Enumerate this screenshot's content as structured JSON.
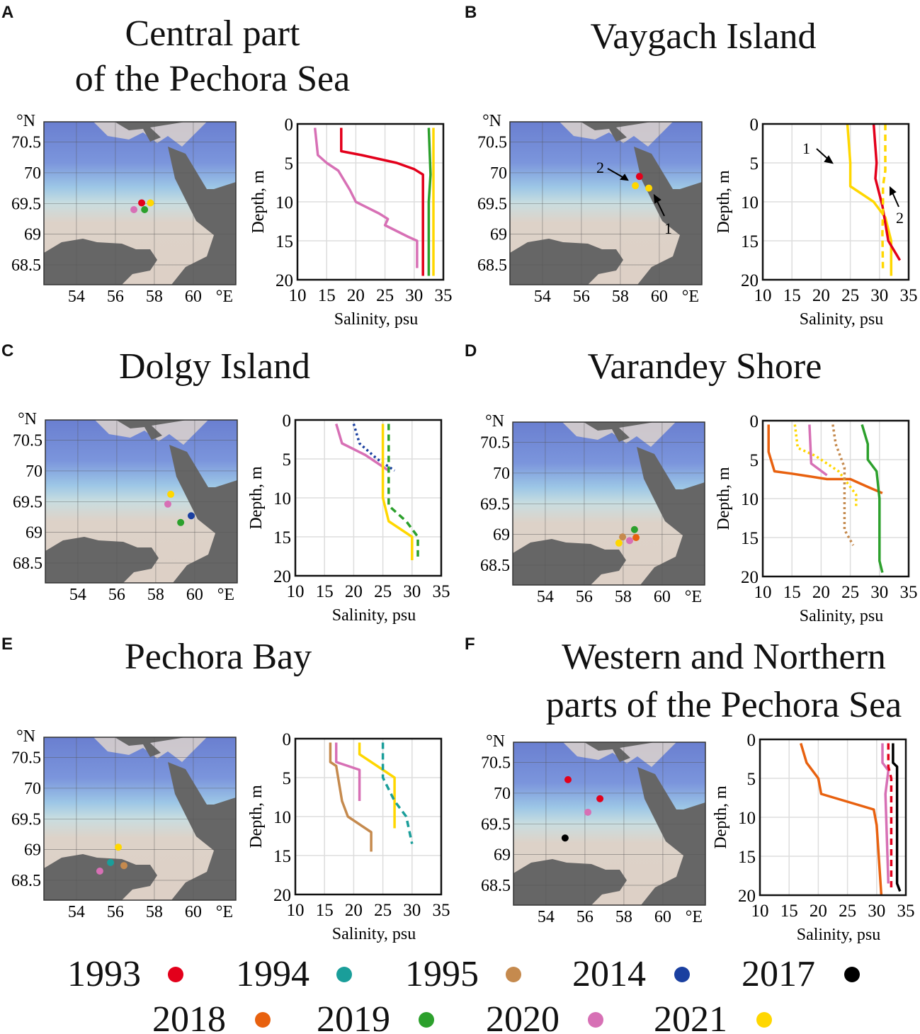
{
  "colors": {
    "1993": "#e3001b",
    "1994": "#1a9e9a",
    "1995": "#c58a4e",
    "2014": "#1a3fa0",
    "2017": "#000000",
    "2018": "#e8610f",
    "2019": "#2ca02c",
    "2020": "#d770b5",
    "2021": "#ffd700"
  },
  "map_axes": {
    "lon_ticks": [
      "54",
      "56",
      "58",
      "60"
    ],
    "lat_ticks": [
      "70.5",
      "70",
      "69.5",
      "69",
      "68.5"
    ],
    "lon_unit": "°E",
    "lat_unit": "°N"
  },
  "chart_data": [
    {
      "type": "line",
      "panel": "A",
      "title_lines": [
        "Central part",
        "of the Pechora Sea"
      ],
      "xlabel": "Salinity, psu",
      "ylabel": "Depth, m",
      "xlim": [
        10,
        35
      ],
      "ylim": [
        0,
        20
      ],
      "xticks": [
        "10",
        "15",
        "20",
        "25",
        "30",
        "35"
      ],
      "yticks": [
        "0",
        "5",
        "10",
        "15",
        "20"
      ],
      "stations": [
        {
          "year": "1993",
          "lon": 57.35,
          "lat": 69.51
        },
        {
          "year": "2021",
          "lon": 57.8,
          "lat": 69.51
        },
        {
          "year": "2020",
          "lon": 56.95,
          "lat": 69.4
        },
        {
          "year": "2019",
          "lon": 57.5,
          "lat": 69.4
        }
      ],
      "series": [
        {
          "year": "2020",
          "style": "solid",
          "points": [
            [
              13,
              0.5
            ],
            [
              13.5,
              4
            ],
            [
              15,
              5
            ],
            [
              17,
              6
            ],
            [
              19,
              8.5
            ],
            [
              20,
              10
            ],
            [
              24,
              11.5
            ],
            [
              25.5,
              12.2
            ],
            [
              25,
              13
            ],
            [
              29,
              14.5
            ],
            [
              30.5,
              15
            ],
            [
              30.5,
              18.5
            ]
          ]
        },
        {
          "year": "1993",
          "style": "solid",
          "points": [
            [
              17.5,
              0.5
            ],
            [
              17.5,
              3.5
            ],
            [
              21,
              4
            ],
            [
              27,
              5
            ],
            [
              30,
              5.8
            ],
            [
              31.5,
              6.5
            ],
            [
              31.5,
              19.5
            ]
          ]
        },
        {
          "year": "2019",
          "style": "solid",
          "points": [
            [
              32.5,
              0.5
            ],
            [
              32.8,
              6.5
            ],
            [
              32.5,
              10
            ],
            [
              32.5,
              19.5
            ]
          ]
        },
        {
          "year": "2021",
          "style": "solid",
          "points": [
            [
              33.3,
              0.5
            ],
            [
              33.3,
              19.5
            ]
          ]
        }
      ]
    },
    {
      "type": "line",
      "panel": "B",
      "title_lines": [
        "Vaygach Island"
      ],
      "xlabel": "Salinity, psu",
      "ylabel": "Depth, m",
      "xlim": [
        10,
        35
      ],
      "ylim": [
        0,
        20
      ],
      "xticks": [
        "10",
        "15",
        "20",
        "25",
        "30",
        "35"
      ],
      "yticks": [
        "0",
        "5",
        "10",
        "15",
        "20"
      ],
      "stations": [
        {
          "year": "1993",
          "lon": 58.98,
          "lat": 69.94
        },
        {
          "year": "2021",
          "lon": 59.46,
          "lat": 69.75
        },
        {
          "year": "2021",
          "lon": 58.77,
          "lat": 69.79
        }
      ],
      "map_annotations": [
        "2",
        "1"
      ],
      "chart_annotations": [
        "1",
        "2"
      ],
      "series": [
        {
          "year": "2021",
          "style": "solid",
          "points": [
            [
              24.5,
              0
            ],
            [
              25,
              5
            ],
            [
              25,
              8
            ],
            [
              29,
              10
            ],
            [
              31,
              12
            ],
            [
              32,
              15
            ],
            [
              32,
              19.5
            ]
          ]
        },
        {
          "year": "1993",
          "style": "solid",
          "points": [
            [
              29,
              0
            ],
            [
              29.2,
              2
            ],
            [
              29.5,
              5
            ],
            [
              29.3,
              7
            ],
            [
              30.5,
              10.5
            ],
            [
              31.5,
              15
            ],
            [
              33.5,
              17.5
            ]
          ]
        },
        {
          "year": "2021",
          "style": "dashed",
          "points": [
            [
              31,
              0
            ],
            [
              31,
              6
            ],
            [
              30.6,
              8
            ],
            [
              30.6,
              11
            ],
            [
              30.5,
              14
            ],
            [
              30.6,
              19
            ]
          ]
        }
      ]
    },
    {
      "type": "line",
      "panel": "C",
      "title_lines": [
        "Dolgy Island"
      ],
      "xlabel": "Salinity, psu",
      "ylabel": "Depth, m",
      "xlim": [
        10,
        35
      ],
      "ylim": [
        0,
        20
      ],
      "xticks": [
        "10",
        "15",
        "20",
        "25",
        "30",
        "35"
      ],
      "yticks": [
        "0",
        "5",
        "10",
        "15",
        "20"
      ],
      "stations": [
        {
          "year": "2021",
          "lon": 58.77,
          "lat": 69.62
        },
        {
          "year": "2020",
          "lon": 58.62,
          "lat": 69.46
        },
        {
          "year": "2014",
          "lon": 59.82,
          "lat": 69.27
        },
        {
          "year": "2019",
          "lon": 59.28,
          "lat": 69.16
        }
      ],
      "series": [
        {
          "year": "2020",
          "style": "solid",
          "points": [
            [
              17,
              0.5
            ],
            [
              18,
              3
            ],
            [
              22,
              4.5
            ],
            [
              26,
              6.5
            ]
          ]
        },
        {
          "year": "2014",
          "style": "dotted",
          "points": [
            [
              20,
              0.5
            ],
            [
              21,
              3
            ],
            [
              24,
              5
            ],
            [
              27,
              6.5
            ]
          ]
        },
        {
          "year": "2019",
          "style": "dashed",
          "points": [
            [
              26,
              0.5
            ],
            [
              26,
              5
            ],
            [
              26,
              11
            ],
            [
              29,
              13
            ],
            [
              31,
              15
            ],
            [
              31,
              18
            ]
          ]
        },
        {
          "year": "2021",
          "style": "solid",
          "points": [
            [
              25,
              0.5
            ],
            [
              25,
              5
            ],
            [
              25,
              10
            ],
            [
              26,
              13
            ],
            [
              30,
              15
            ],
            [
              30,
              18
            ]
          ]
        }
      ]
    },
    {
      "type": "line",
      "panel": "D",
      "title_lines": [
        "Varandey Shore"
      ],
      "xlabel": "Salinity, psu",
      "ylabel": "Depth, m",
      "xlim": [
        10,
        35
      ],
      "ylim": [
        0,
        20
      ],
      "xticks": [
        "10",
        "15",
        "20",
        "25",
        "30",
        "35"
      ],
      "yticks": [
        "0",
        "5",
        "10",
        "15",
        "20"
      ],
      "stations": [
        {
          "year": "2019",
          "lon": 58.58,
          "lat": 69.08
        },
        {
          "year": "1995",
          "lon": 57.97,
          "lat": 68.96
        },
        {
          "year": "2018",
          "lon": 58.66,
          "lat": 68.95
        },
        {
          "year": "2020",
          "lon": 58.33,
          "lat": 68.9
        },
        {
          "year": "2021",
          "lon": 57.78,
          "lat": 68.86
        }
      ],
      "series": [
        {
          "year": "2018",
          "style": "solid",
          "points": [
            [
              11,
              0.5
            ],
            [
              11,
              4
            ],
            [
              12,
              6.5
            ],
            [
              15,
              6.8
            ],
            [
              21,
              7.5
            ],
            [
              25,
              7.5
            ],
            [
              28,
              8.5
            ],
            [
              30.5,
              9.3
            ]
          ]
        },
        {
          "year": "2021",
          "style": "dotted",
          "points": [
            [
              15.5,
              0.5
            ],
            [
              16,
              3.5
            ],
            [
              19,
              4.5
            ],
            [
              23,
              6.5
            ],
            [
              26,
              9.5
            ],
            [
              26,
              11
            ]
          ]
        },
        {
          "year": "2020",
          "style": "solid",
          "points": [
            [
              18,
              0.5
            ],
            [
              18.3,
              5.5
            ],
            [
              21,
              7
            ]
          ]
        },
        {
          "year": "1995",
          "style": "dotted",
          "points": [
            [
              22,
              0.5
            ],
            [
              22.5,
              3
            ],
            [
              24,
              6
            ],
            [
              24,
              8
            ],
            [
              24,
              14
            ],
            [
              25.5,
              16
            ]
          ]
        },
        {
          "year": "2019",
          "style": "solid",
          "points": [
            [
              27,
              0.5
            ],
            [
              28,
              3
            ],
            [
              28,
              5
            ],
            [
              29.5,
              6.5
            ],
            [
              30,
              10
            ],
            [
              30,
              18
            ],
            [
              30.5,
              19.5
            ]
          ]
        }
      ]
    },
    {
      "type": "line",
      "panel": "E",
      "title_lines": [
        "Pechora Bay"
      ],
      "xlabel": "Salinity, psu",
      "ylabel": "Depth, m",
      "xlim": [
        10,
        35
      ],
      "ylim": [
        0,
        20
      ],
      "xticks": [
        "10",
        "15",
        "20",
        "25",
        "30",
        "35"
      ],
      "yticks": [
        "0",
        "5",
        "10",
        "15",
        "20"
      ],
      "stations": [
        {
          "year": "2021",
          "lon": 56.15,
          "lat": 69.04
        },
        {
          "year": "1994",
          "lon": 55.75,
          "lat": 68.79
        },
        {
          "year": "1995",
          "lon": 56.44,
          "lat": 68.74
        },
        {
          "year": "2020",
          "lon": 55.2,
          "lat": 68.65
        }
      ],
      "series": [
        {
          "year": "1995",
          "style": "solid",
          "points": [
            [
              16,
              0.5
            ],
            [
              16,
              3
            ],
            [
              17,
              3.5
            ],
            [
              18,
              8
            ],
            [
              19,
              10
            ],
            [
              23,
              12
            ],
            [
              23,
              14.5
            ]
          ]
        },
        {
          "year": "2020",
          "style": "solid",
          "points": [
            [
              17,
              0.5
            ],
            [
              17,
              3
            ],
            [
              21,
              4
            ],
            [
              21,
              8
            ]
          ]
        },
        {
          "year": "2021",
          "style": "solid",
          "points": [
            [
              21,
              0.5
            ],
            [
              21,
              2
            ],
            [
              24,
              3.5
            ],
            [
              27,
              5
            ],
            [
              27,
              11.5
            ]
          ]
        },
        {
          "year": "1994",
          "style": "dashed",
          "points": [
            [
              25,
              0.5
            ],
            [
              25,
              4
            ],
            [
              25,
              5
            ],
            [
              27,
              8
            ],
            [
              29,
              10
            ],
            [
              30,
              13.5
            ]
          ]
        }
      ]
    },
    {
      "type": "line",
      "panel": "F",
      "title_lines": [
        "Western and Northern",
        "parts of the Pechora Sea"
      ],
      "xlabel": "Salinity, psu",
      "ylabel": "Depth, m",
      "xlim": [
        10,
        35
      ],
      "ylim": [
        0,
        20
      ],
      "xticks": [
        "10",
        "15",
        "20",
        "25",
        "30",
        "35"
      ],
      "yticks": [
        "0",
        "5",
        "10",
        "15",
        "20"
      ],
      "stations": [
        {
          "year": "1993",
          "lon": 55.13,
          "lat": 70.22
        },
        {
          "year": "1993",
          "lon": 56.77,
          "lat": 69.91
        },
        {
          "year": "2020",
          "lon": 56.15,
          "lat": 69.69
        },
        {
          "year": "2017",
          "lon": 54.98,
          "lat": 69.27
        }
      ],
      "series": [
        {
          "year": "2018",
          "style": "solid",
          "points": [
            [
              17,
              0.5
            ],
            [
              18,
              3
            ],
            [
              20,
              5
            ],
            [
              20.5,
              7
            ],
            [
              25,
              8
            ],
            [
              29.5,
              9
            ],
            [
              30,
              11
            ],
            [
              30.8,
              20
            ]
          ]
        },
        {
          "year": "2020",
          "style": "solid",
          "points": [
            [
              31,
              0.5
            ],
            [
              31,
              3
            ],
            [
              32,
              4
            ],
            [
              31.5,
              7
            ],
            [
              32,
              18.5
            ]
          ]
        },
        {
          "year": "1993",
          "style": "dashed",
          "points": [
            [
              32,
              0.5
            ],
            [
              32,
              3.5
            ],
            [
              32.5,
              5
            ],
            [
              32.5,
              19.5
            ]
          ]
        },
        {
          "year": "2017",
          "style": "solid",
          "points": [
            [
              32.8,
              0.5
            ],
            [
              32.8,
              3
            ],
            [
              33.5,
              3.5
            ],
            [
              33.5,
              18.5
            ],
            [
              34,
              19.5
            ]
          ]
        }
      ]
    }
  ],
  "legend": {
    "rows": [
      [
        "1993",
        "1994",
        "1995",
        "2014",
        "2017"
      ],
      [
        "2018",
        "2019",
        "2020",
        "2021"
      ]
    ]
  }
}
